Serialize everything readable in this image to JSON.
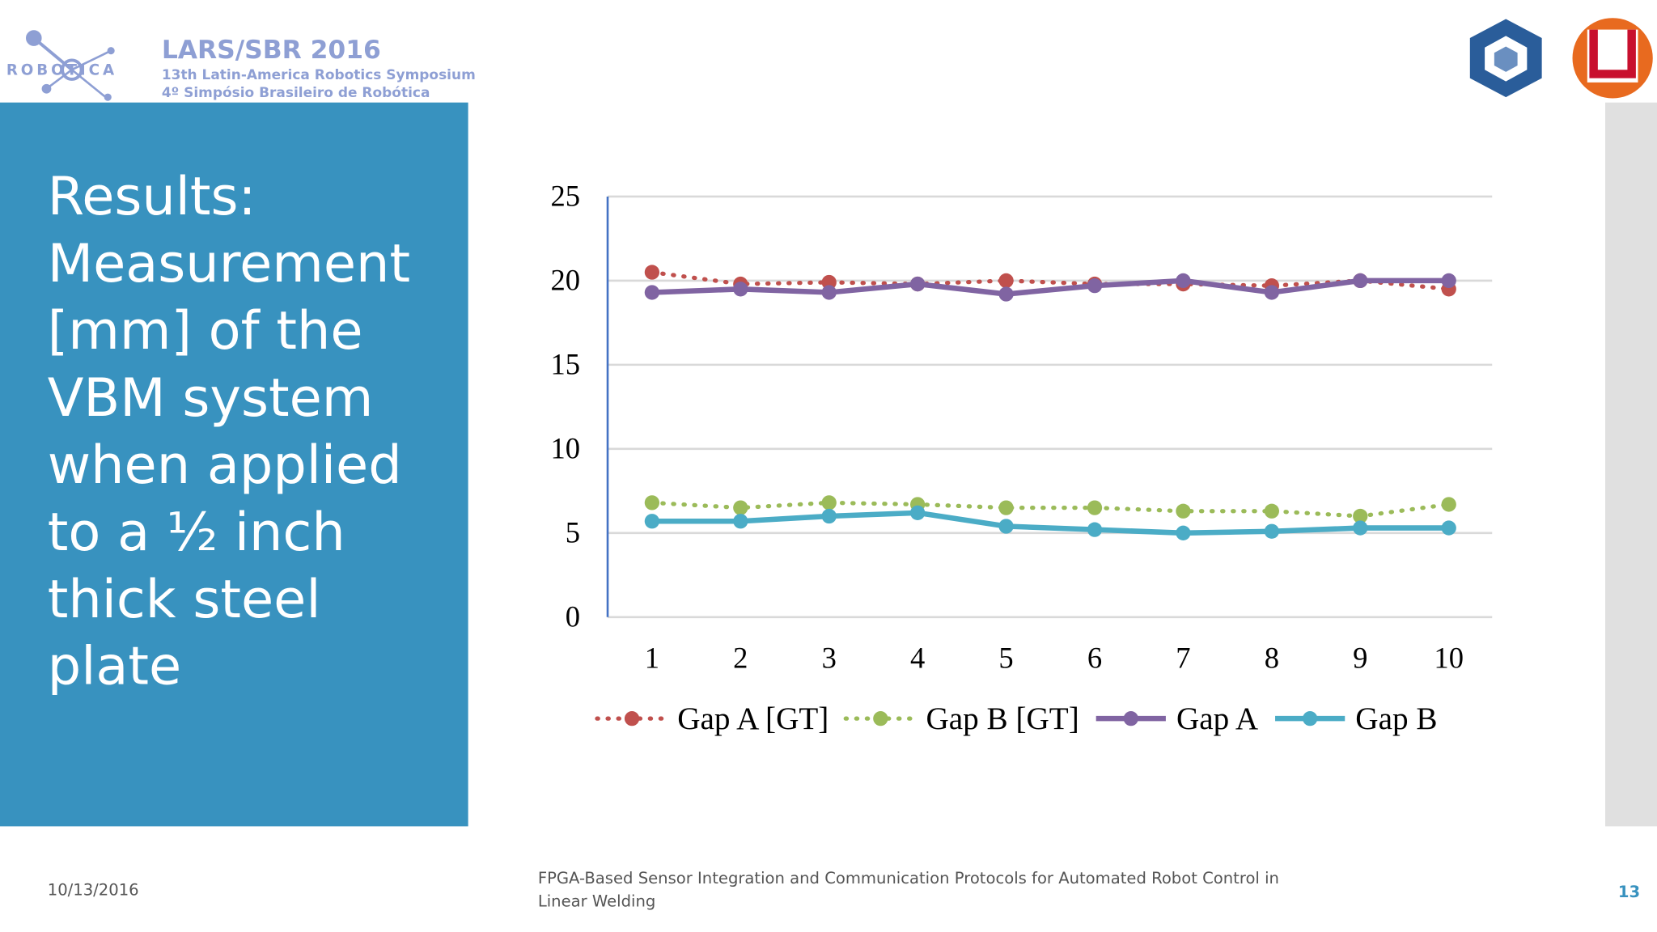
{
  "header": {
    "logo_text": "ROBOTICA",
    "event": "LARS/SBR 2016",
    "line1": "13th Latin-America Robotics Symposium",
    "line2": "4º Simpósio Brasileiro de Robótica"
  },
  "slide_title": [
    "Results:",
    "Measurement",
    "[mm] of the",
    "VBM system",
    "when applied",
    "to a ½ inch",
    "thick steel",
    "plate"
  ],
  "footer": {
    "date": "10/13/2016",
    "title": [
      "FPGA-Based Sensor Integration and Communication Protocols for Automated Robot Control in",
      "Linear Welding"
    ],
    "page": "13"
  },
  "chart_data": {
    "type": "line",
    "categories": [
      "1",
      "2",
      "3",
      "4",
      "5",
      "6",
      "7",
      "8",
      "9",
      "10"
    ],
    "series": [
      {
        "name": "Gap A [GT]",
        "color": "#c0504d",
        "style": "dotted",
        "values": [
          20.5,
          19.8,
          19.9,
          19.8,
          20.0,
          19.8,
          19.8,
          19.7,
          20.0,
          19.5
        ]
      },
      {
        "name": "Gap B [GT]",
        "color": "#9bbb59",
        "style": "dotted",
        "values": [
          6.8,
          6.5,
          6.8,
          6.7,
          6.5,
          6.5,
          6.3,
          6.3,
          6.0,
          6.7
        ]
      },
      {
        "name": "Gap A",
        "color": "#8064a2",
        "style": "solid",
        "values": [
          19.3,
          19.5,
          19.3,
          19.8,
          19.2,
          19.7,
          20.0,
          19.3,
          20.0,
          20.0
        ]
      },
      {
        "name": "Gap B",
        "color": "#4bacc6",
        "style": "solid",
        "values": [
          5.7,
          5.7,
          6.0,
          6.2,
          5.4,
          5.2,
          5.0,
          5.1,
          5.3,
          5.3
        ]
      }
    ],
    "ylim": [
      0,
      25
    ],
    "yticks": [
      0,
      5,
      10,
      15,
      20,
      25
    ],
    "grid": true,
    "legend": "bottom"
  }
}
